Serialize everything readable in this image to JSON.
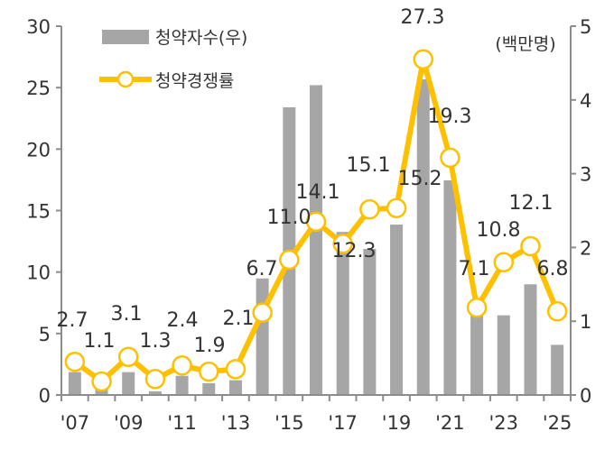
{
  "chart_data": {
    "type": "bar+line",
    "categories": [
      "2007",
      "2008",
      "2009",
      "2010",
      "2011",
      "2012",
      "2013",
      "2014",
      "2015",
      "2016",
      "2017",
      "2018",
      "2019",
      "2020",
      "2021",
      "2022",
      "2023",
      "2024",
      "2025"
    ],
    "x_tick_labels": [
      "'07",
      "'09",
      "'11",
      "'13",
      "'15",
      "'17",
      "'19",
      "'21",
      "'23",
      "'25"
    ],
    "unit_label": "(백만명)",
    "left_axis": {
      "ylim": [
        0,
        30
      ],
      "ticks": [
        0,
        5,
        10,
        15,
        20,
        25,
        30
      ]
    },
    "right_axis": {
      "ylim": [
        0,
        5
      ],
      "ticks": [
        0,
        1,
        2,
        3,
        4,
        5
      ]
    },
    "grid": false,
    "legend_position": "top-left",
    "series": [
      {
        "name": "청약자수(우)",
        "type": "bar",
        "axis": "right",
        "color": "#a6a6a6",
        "values": [
          0.31,
          0.1,
          0.31,
          0.05,
          0.26,
          0.16,
          0.2,
          1.58,
          3.9,
          4.2,
          2.21,
          1.98,
          2.31,
          4.28,
          2.91,
          1.15,
          1.08,
          1.5,
          0.68
        ]
      },
      {
        "name": "청약경쟁률",
        "type": "line",
        "axis": "left",
        "color": "#ffc000",
        "values": [
          2.7,
          1.1,
          3.1,
          1.3,
          2.4,
          1.9,
          2.1,
          6.7,
          11.0,
          14.1,
          12.3,
          15.1,
          15.2,
          27.3,
          19.3,
          7.1,
          10.8,
          12.1,
          6.8
        ],
        "data_labels": [
          "2.7",
          "1.1",
          "3.1",
          "1.3",
          "2.4",
          "1.9",
          "2.1",
          "6.7",
          "11.0",
          "14.1",
          "12.3",
          "15.1",
          "15.2",
          "27.3",
          "19.3",
          "7.1",
          "10.8",
          "12.1",
          "6.8"
        ]
      }
    ]
  }
}
